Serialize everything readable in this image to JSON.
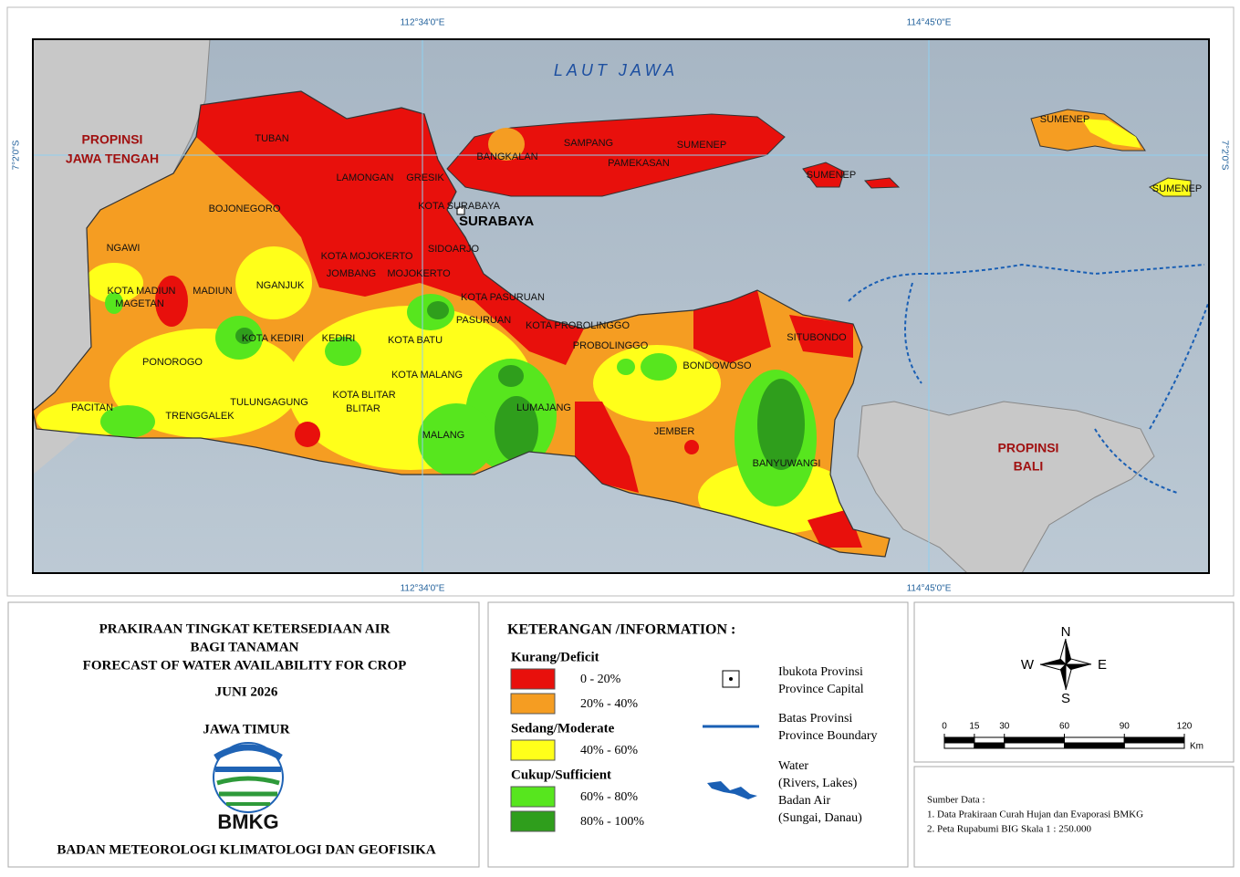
{
  "map": {
    "coord_labels": {
      "top": [
        "112°34'0\"E",
        "114°45'0\"E"
      ],
      "bottom": [
        "112°34'0\"E",
        "114°45'0\"E"
      ],
      "left": "7°2'0\"S",
      "right": "7°2'0\"S"
    },
    "sea_label": "LAUT JAWA",
    "neighbor_labels": [
      [
        "PROPINSI",
        "JAWA TENGAH"
      ],
      [
        "PROPINSI",
        "BALI"
      ]
    ],
    "capital_label": "SURABAYA",
    "district_labels": [
      "TUBAN",
      "LAMONGAN",
      "GRESIK",
      "KOTA SURABAYA",
      "BANGKALAN",
      "SAMPANG",
      "SUMENEP",
      "PAMEKASAN",
      "SUMENEP",
      "SUMENEP",
      "SUMENEP",
      "BOJONEGORO",
      "NGAWI",
      "KOTA MOJOKERTO",
      "SIDOARJO",
      "JOMBANG",
      "MOJOKERTO",
      "KOTA MADIUN",
      "MADIUN",
      "MAGETAN",
      "NGANJUK",
      "KOTA PASURUAN",
      "PASURUAN",
      "KOTA PROBOLINGGO",
      "PROBOLINGGO",
      "KOTA KEDIRI",
      "KEDIRI",
      "KOTA BATU",
      "SITUBONDO",
      "BONDOWOSO",
      "PONOROGO",
      "KOTA MALANG",
      "TULUNGAGUNG",
      "KOTA BLITAR",
      "BLITAR",
      "LUMAJANG",
      "PACITAN",
      "TRENGGALEK",
      "JEMBER",
      "MALANG",
      "BANYUWANGI"
    ]
  },
  "title_block": {
    "lines": [
      "PRAKIRAAN TINGKAT  KETERSEDIAAN AIR",
      "BAGI TANAMAN",
      "FORECAST OF WATER  AVAILABILITY FOR CROP"
    ],
    "period": "JUNI 2026",
    "region": "JAWA TIMUR",
    "logo_text": "BMKG",
    "agency": "BADAN METEOROLOGI KLIMATOLOGI DAN GEOFISIKA"
  },
  "legend": {
    "title": "KETERANGAN /INFORMATION :",
    "groups": [
      {
        "name": "Kurang/Deficit",
        "items": [
          {
            "color": "#e8100c",
            "label": "0 - 20%"
          },
          {
            "color": "#f59d22",
            "label": "20% - 40%"
          }
        ]
      },
      {
        "name": "Sedang/Moderate",
        "items": [
          {
            "color": "#ffff1a",
            "label": "40% - 60%"
          }
        ]
      },
      {
        "name": "Cukup/Sufficient",
        "items": [
          {
            "color": "#57e61e",
            "label": "60% - 80%"
          },
          {
            "color": "#2f9e1c",
            "label": "80% - 100%"
          }
        ]
      }
    ],
    "symbols": [
      [
        "Ibukota Provinsi",
        "Province Capital"
      ],
      [
        "Batas Provinsi",
        "Province Boundary"
      ],
      [
        "Water",
        "(Rivers, Lakes)",
        "Badan Air",
        "(Sungai, Danau)"
      ]
    ]
  },
  "north_arrow": {
    "n": "N",
    "e": "E",
    "s": "S",
    "w": "W"
  },
  "scale_bar": {
    "ticks": [
      0,
      15,
      30,
      60,
      90,
      120
    ],
    "unit": "Km"
  },
  "source": {
    "title": "Sumber Data :",
    "items": [
      "1. Data Prakiraan Curah Hujan dan Evaporasi BMKG",
      "2. Peta Rupabumi BIG Skala 1 : 250.000"
    ]
  }
}
